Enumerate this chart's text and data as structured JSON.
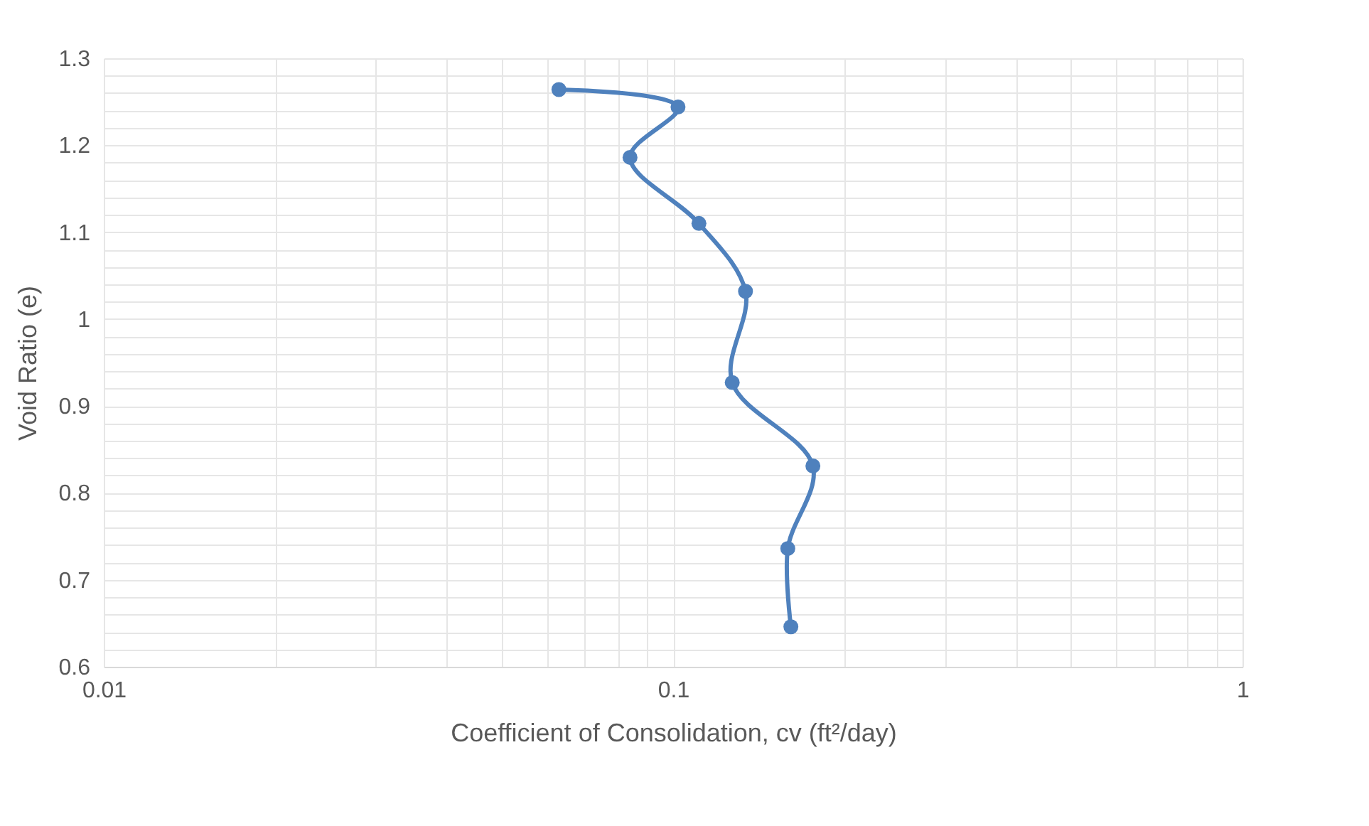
{
  "chart_data": {
    "type": "line",
    "xlabel": "Coefficient of Consolidation, cv (ft²/day)",
    "ylabel": "Void Ratio (e)",
    "log": "x",
    "grid": true,
    "marker": "circle",
    "line_style": "solid",
    "xlim": [
      0.01,
      1
    ],
    "ylim": [
      0.6,
      1.3
    ],
    "xticks": [
      0.01,
      {
        "value": 0.02,
        "label": null
      },
      {
        "value": 0.03,
        "label": null
      },
      {
        "value": 0.04,
        "label": null
      },
      {
        "value": 0.05,
        "label": null
      },
      {
        "value": 0.06,
        "label": null
      },
      {
        "value": 0.07,
        "label": null
      },
      {
        "value": 0.08,
        "label": null
      },
      {
        "value": 0.09,
        "label": null
      },
      0.1,
      {
        "value": 0.2,
        "label": null
      },
      {
        "value": 0.3,
        "label": null
      },
      {
        "value": 0.4,
        "label": null
      },
      {
        "value": 0.5,
        "label": null
      },
      {
        "value": 0.6,
        "label": null
      },
      {
        "value": 0.7,
        "label": null
      },
      {
        "value": 0.8,
        "label": null
      },
      {
        "value": 0.9,
        "label": null
      },
      1
    ],
    "yticks": [
      0.6,
      {
        "value": 0.62,
        "label": null
      },
      {
        "value": 0.64,
        "label": null
      },
      {
        "value": 0.66,
        "label": null
      },
      {
        "value": 0.68,
        "label": null
      },
      0.7,
      {
        "value": 0.72,
        "label": null
      },
      {
        "value": 0.74,
        "label": null
      },
      {
        "value": 0.76,
        "label": null
      },
      {
        "value": 0.78,
        "label": null
      },
      0.8,
      {
        "value": 0.82,
        "label": null
      },
      {
        "value": 0.84,
        "label": null
      },
      {
        "value": 0.86,
        "label": null
      },
      {
        "value": 0.88,
        "label": null
      },
      0.9,
      {
        "value": 0.92,
        "label": null
      },
      {
        "value": 0.94,
        "label": null
      },
      {
        "value": 0.96,
        "label": null
      },
      {
        "value": 0.98,
        "label": null
      },
      1,
      {
        "value": 1.02,
        "label": null
      },
      {
        "value": 1.04,
        "label": null
      },
      {
        "value": 1.06,
        "label": null
      },
      {
        "value": 1.08,
        "label": null
      },
      1.1,
      {
        "value": 1.12,
        "label": null
      },
      {
        "value": 1.14,
        "label": null
      },
      {
        "value": 1.16,
        "label": null
      },
      {
        "value": 1.18,
        "label": null
      },
      1.2,
      {
        "value": 1.22,
        "label": null
      },
      {
        "value": 1.24,
        "label": null
      },
      {
        "value": 1.26,
        "label": null
      },
      {
        "value": 1.28,
        "label": null
      },
      1.3
    ],
    "series": [
      {
        "color": "#4f81bd",
        "x": [
          0.063,
          0.102,
          0.084,
          0.111,
          0.134,
          0.127,
          0.176,
          0.159,
          0.161
        ],
        "values": [
          1.264,
          1.244,
          1.186,
          1.11,
          1.032,
          0.927,
          0.831,
          0.736,
          0.646
        ]
      }
    ]
  }
}
